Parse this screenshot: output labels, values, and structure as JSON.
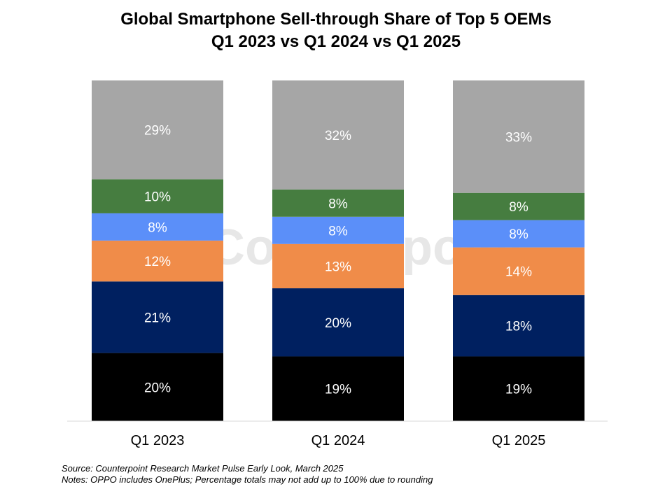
{
  "chart_data": {
    "type": "bar",
    "stacked": true,
    "title": "Global Smartphone Sell-through Share of Top 5 OEMs",
    "subtitle": "Q1 2023 vs Q1 2024 vs Q1 2025",
    "categories": [
      "Q1 2023",
      "Q1 2024",
      "Q1 2025"
    ],
    "ylim": [
      0,
      100
    ],
    "grid": false,
    "legend": "none",
    "series": [
      {
        "color": "#000000",
        "values": [
          20,
          19,
          19
        ],
        "labels": [
          "20%",
          "19%",
          "19%"
        ]
      },
      {
        "color": "#002060",
        "values": [
          21,
          20,
          18
        ],
        "labels": [
          "21%",
          "20%",
          "18%"
        ]
      },
      {
        "color": "#F08C49",
        "values": [
          12,
          13,
          14
        ],
        "labels": [
          "12%",
          "13%",
          "14%"
        ]
      },
      {
        "color": "#5B8FF9",
        "values": [
          8,
          8,
          8
        ],
        "labels": [
          "8%",
          "8%",
          "8%"
        ]
      },
      {
        "color": "#467D40",
        "values": [
          10,
          8,
          8
        ],
        "labels": [
          "10%",
          "8%",
          "8%"
        ]
      },
      {
        "color": "#A6A6A6",
        "values": [
          29,
          32,
          33
        ],
        "labels": [
          "29%",
          "32%",
          "33%"
        ]
      }
    ]
  },
  "watermark": {
    "text": "Counterpoint"
  },
  "footnotes": {
    "source": "Source: Counterpoint Research Market Pulse Early Look, March 2025",
    "notes": "Notes: OPPO includes OnePlus; Percentage totals may not add up to 100% due to rounding"
  }
}
